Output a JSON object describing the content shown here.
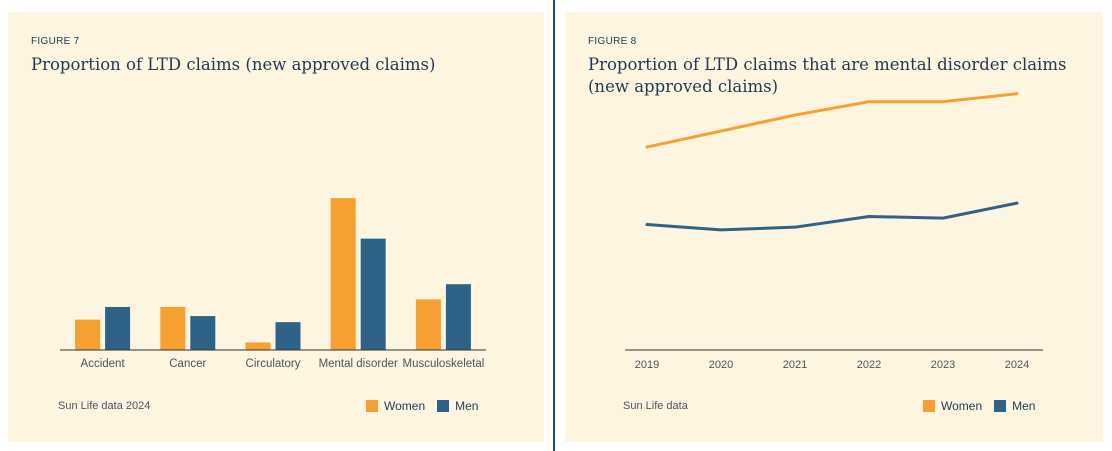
{
  "colors": {
    "women": "#f5a031",
    "men": "#2e6286",
    "axis": "#333333",
    "tick": "#4b5563"
  },
  "figure7": {
    "label": "FIGURE 7",
    "title": "Proportion of LTD claims (new approved claims)",
    "source": "Sun Life data 2024"
  },
  "figure8": {
    "label": "FIGURE 8",
    "title": "Proportion of LTD claims that are mental disorder claims (new approved claims)",
    "source": "Sun Life data"
  },
  "legend": {
    "women": "Women",
    "men": "Men"
  },
  "chart_data": [
    {
      "type": "bar",
      "categories": [
        "Accident",
        "Cancer",
        "Circulatory",
        "Mental disorder",
        "Musculoskeletal"
      ],
      "series": [
        {
          "name": "Women",
          "values": [
            6,
            8.5,
            1.5,
            30,
            10
          ]
        },
        {
          "name": "Men",
          "values": [
            8.5,
            6.7,
            5.5,
            22,
            13
          ]
        }
      ],
      "ylim": [
        0,
        32
      ],
      "grid": false,
      "legend_position": "bottom-right"
    },
    {
      "type": "line",
      "x": [
        "2019",
        "2020",
        "2021",
        "2022",
        "2023",
        "2024"
      ],
      "series": [
        {
          "name": "Women",
          "values": [
            38,
            41,
            44,
            46.5,
            46.5,
            48
          ]
        },
        {
          "name": "Men",
          "values": [
            23.5,
            22.5,
            23,
            25,
            24.7,
            27.5
          ]
        }
      ],
      "ylim": [
        0,
        50
      ],
      "grid": false,
      "legend_position": "bottom-right"
    }
  ]
}
